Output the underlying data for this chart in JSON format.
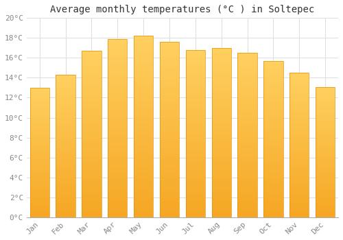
{
  "title": "Average monthly temperatures (°C ) in Soltepec",
  "months": [
    "Jan",
    "Feb",
    "Mar",
    "Apr",
    "May",
    "Jun",
    "Jul",
    "Aug",
    "Sep",
    "Oct",
    "Nov",
    "Dec"
  ],
  "values": [
    13.0,
    14.3,
    16.7,
    17.9,
    18.2,
    17.6,
    16.8,
    17.0,
    16.5,
    15.7,
    14.5,
    13.1
  ],
  "bar_color_bottom": "#F5A623",
  "bar_color_top": "#FFD060",
  "bar_edge_color": "#E89000",
  "background_color": "#FFFFFF",
  "grid_color": "#DDDDDD",
  "ylim": [
    0,
    20
  ],
  "ytick_step": 2,
  "title_fontsize": 10,
  "tick_fontsize": 8,
  "tick_label_color": "#888888",
  "title_color": "#333333"
}
